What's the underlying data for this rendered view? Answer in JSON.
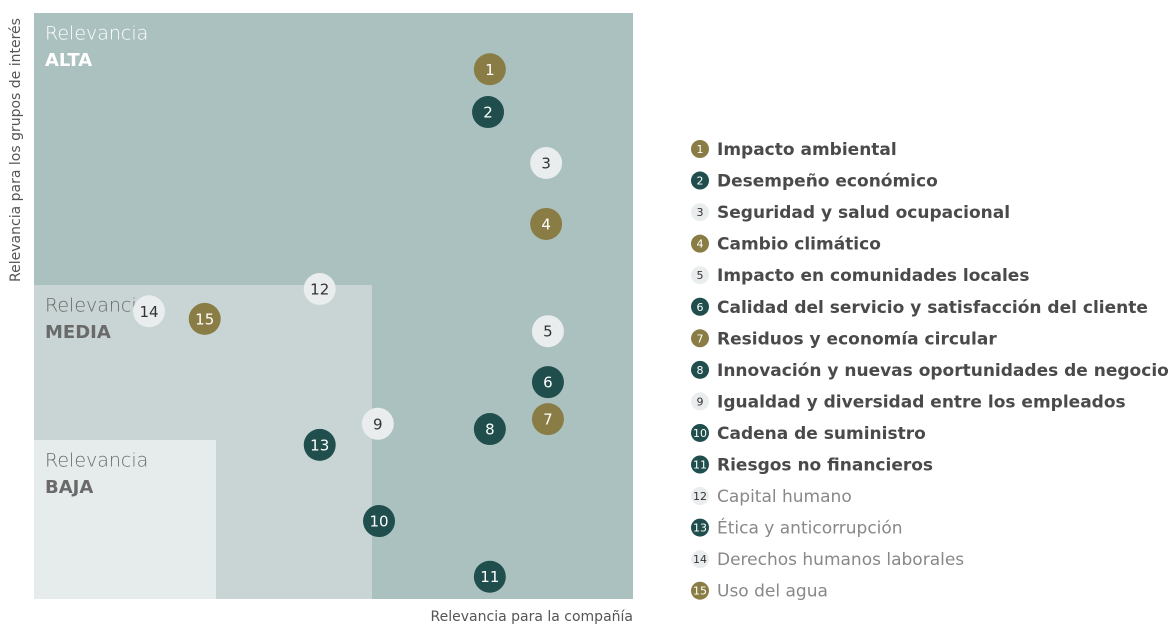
{
  "chart_data": {
    "type": "scatter",
    "x_label": "Relevancia para la compañía",
    "y_label": "Relevancia para los grupos de interés",
    "zones": [
      {
        "title": "Relevancia",
        "level": "ALTA"
      },
      {
        "title": "Relevancia",
        "level": "MEDIA"
      },
      {
        "title": "Relevancia",
        "level": "BAJA"
      }
    ],
    "xlim": [
      0,
      100
    ],
    "ylim": [
      0,
      100
    ],
    "labels": [
      "1",
      "2",
      "3",
      "4",
      "5",
      "6",
      "7",
      "8",
      "9",
      "10",
      "11",
      "12",
      "13",
      "14",
      "15"
    ],
    "categories": [
      "Impacto ambiental",
      "Desempeño económico",
      "Seguridad y salud ocupacional",
      "Cambio climático",
      "Impacto en comunidades locales",
      "Calidad del servicio y satisfacción del cliente",
      "Residuos y economía circular",
      "Innovación y nuevas oportunidades de negocio",
      "Igualdad y diversidad entre los empleados",
      "Cadena de suministro",
      "Riesgos no financieros",
      "Capital humano",
      "Ética y anticorrupción",
      "Derechos humanos laborales",
      "Uso del agua"
    ],
    "x": [
      76.1,
      75.8,
      85.5,
      85.5,
      85.8,
      85.8,
      85.8,
      76.1,
      57.4,
      57.6,
      76.1,
      47.7,
      47.7,
      19.2,
      28.5
    ],
    "values": [
      90.4,
      83.1,
      74.4,
      64.0,
      45.7,
      37.0,
      30.7,
      29.0,
      29.9,
      13.3,
      3.8,
      52.9,
      26.3,
      49.1,
      47.8
    ],
    "colors": [
      "#8a7c45",
      "#1f4e4c",
      "#e9eded",
      "#8a7c45",
      "#e9eded",
      "#1f4e4c",
      "#8a7c45",
      "#1f4e4c",
      "#e9eded",
      "#1f4e4c",
      "#1f4e4c",
      "#e9eded",
      "#1f4e4c",
      "#e9eded",
      "#8a7c45"
    ],
    "emphasis": [
      true,
      true,
      true,
      true,
      true,
      true,
      true,
      true,
      true,
      true,
      true,
      false,
      false,
      false,
      false
    ]
  }
}
